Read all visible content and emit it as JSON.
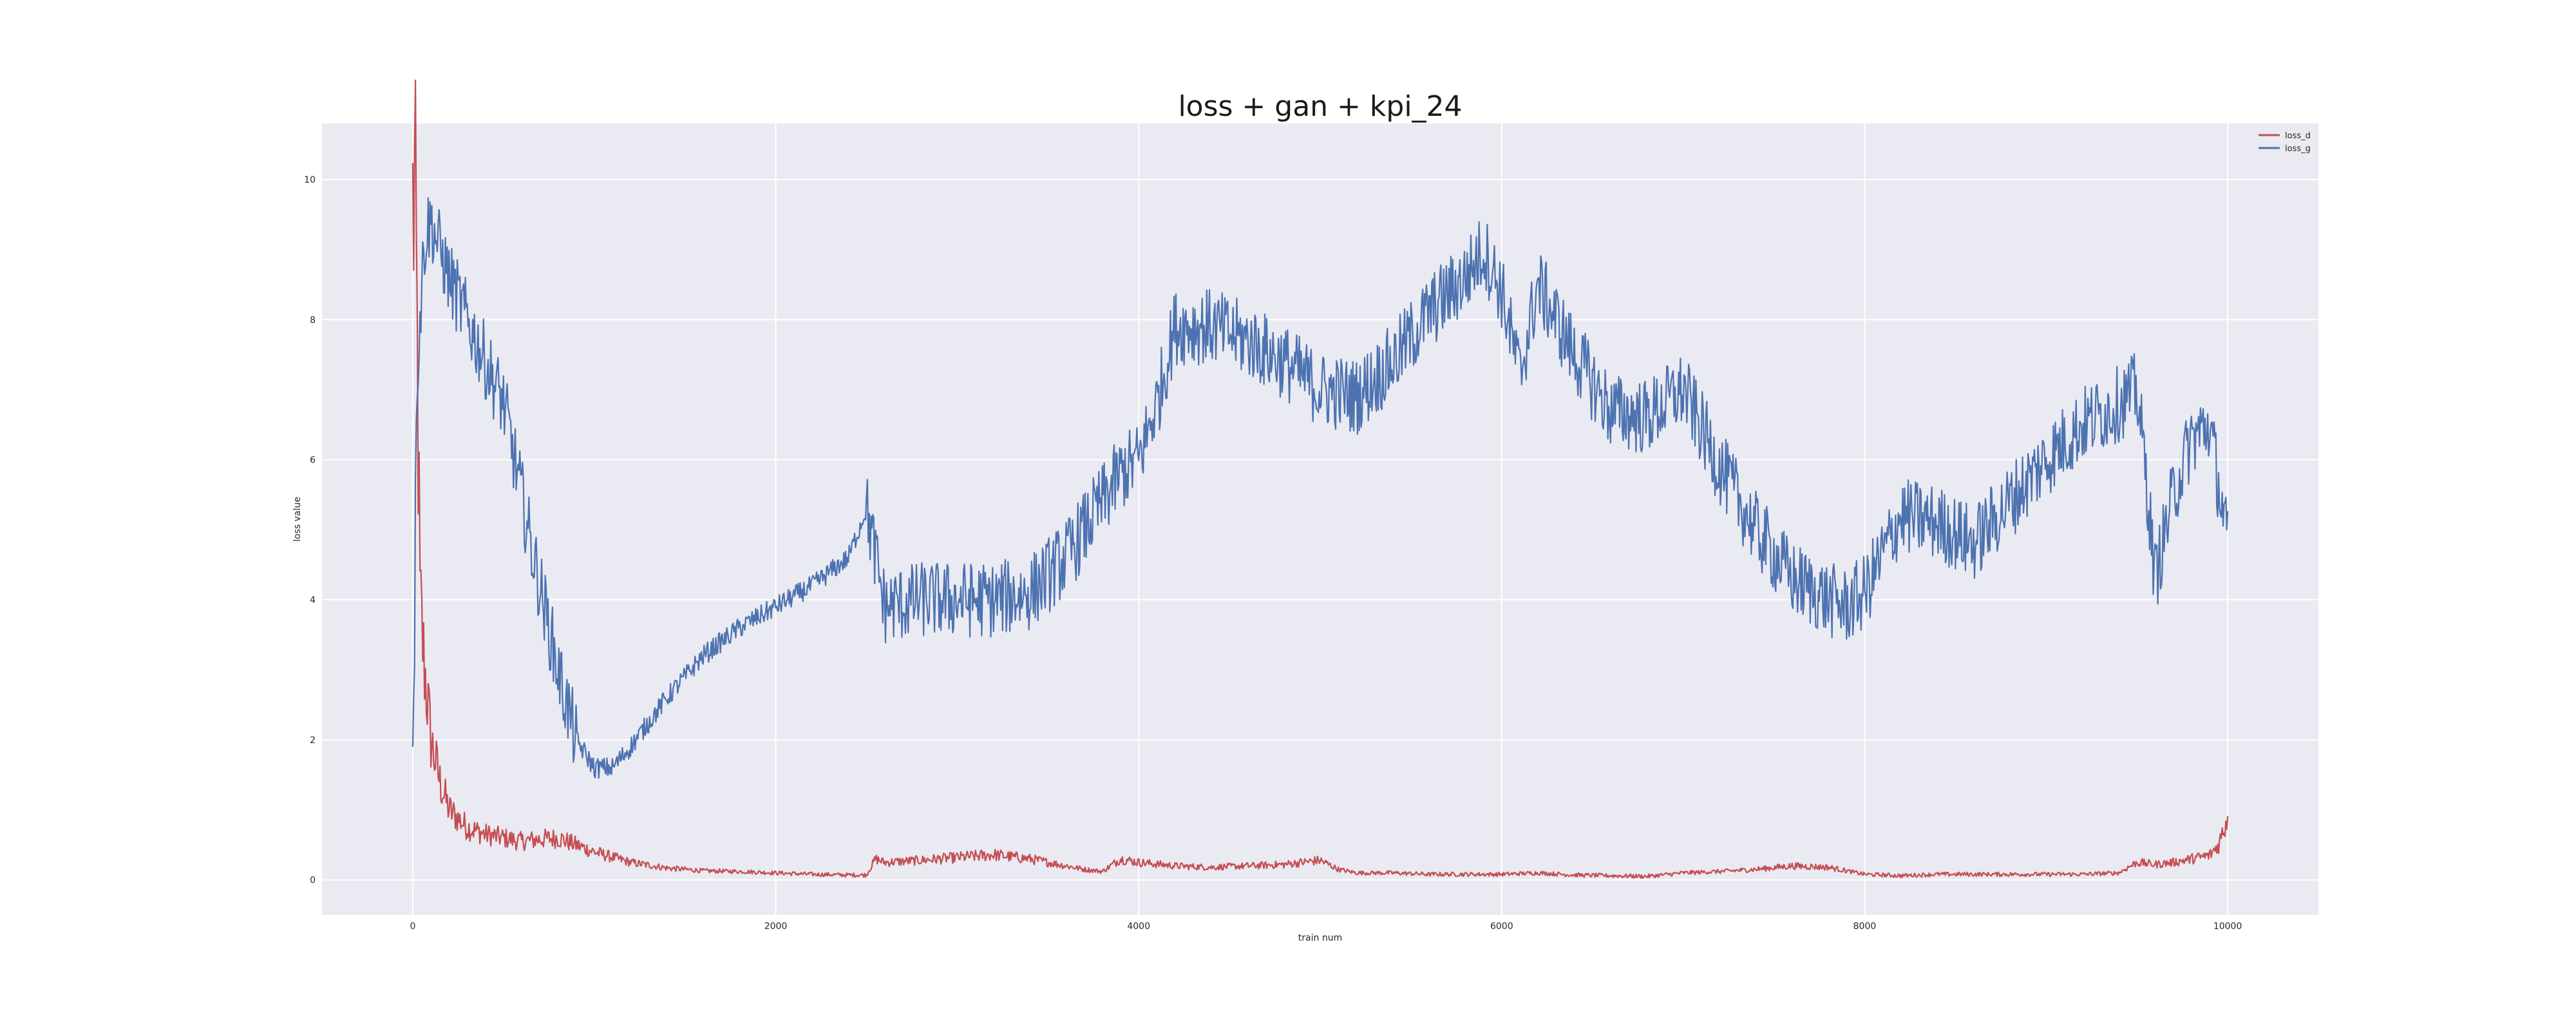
{
  "chart_data": {
    "type": "line",
    "title": "loss + gan + kpi_24",
    "xlabel": "train num",
    "ylabel": "loss value",
    "xlim": [
      -500,
      10500
    ],
    "ylim": [
      -0.5,
      10.8
    ],
    "xticks": [
      0,
      2000,
      4000,
      6000,
      8000,
      10000
    ],
    "yticks": [
      0,
      2,
      4,
      6,
      8,
      10
    ],
    "grid": true,
    "legend_position": "top-right",
    "series": [
      {
        "name": "loss_d",
        "color": "#c44e52",
        "x": [
          0,
          10,
          20,
          40,
          60,
          80,
          100,
          150,
          200,
          300,
          400,
          500,
          600,
          700,
          800,
          900,
          1000,
          1200,
          1400,
          1600,
          1800,
          2000,
          2200,
          2400,
          2500,
          2550,
          2600,
          2800,
          3000,
          3200,
          3400,
          3600,
          3700,
          3800,
          3900,
          4000,
          4200,
          4400,
          4600,
          4800,
          5000,
          5100,
          5200,
          5400,
          5600,
          5800,
          6000,
          6200,
          6400,
          6600,
          6800,
          7000,
          7200,
          7400,
          7600,
          7800,
          8000,
          8200,
          8400,
          8600,
          8800,
          9000,
          9200,
          9400,
          9500,
          9600,
          9700,
          9800,
          9900,
          9950,
          10000
        ],
        "values": [
          9.5,
          9.8,
          8.5,
          4.0,
          3.2,
          2.6,
          2.0,
          1.4,
          1.0,
          0.75,
          0.65,
          0.6,
          0.55,
          0.58,
          0.6,
          0.5,
          0.4,
          0.25,
          0.17,
          0.13,
          0.12,
          0.1,
          0.08,
          0.07,
          0.07,
          0.3,
          0.25,
          0.28,
          0.32,
          0.36,
          0.3,
          0.2,
          0.15,
          0.12,
          0.3,
          0.25,
          0.2,
          0.18,
          0.2,
          0.22,
          0.28,
          0.15,
          0.1,
          0.1,
          0.08,
          0.08,
          0.08,
          0.1,
          0.07,
          0.06,
          0.05,
          0.1,
          0.12,
          0.15,
          0.2,
          0.18,
          0.08,
          0.06,
          0.08,
          0.08,
          0.08,
          0.08,
          0.08,
          0.1,
          0.25,
          0.22,
          0.25,
          0.3,
          0.35,
          0.5,
          0.9
        ]
      },
      {
        "name": "loss_g",
        "color": "#4c72b0",
        "x": [
          0,
          10,
          20,
          40,
          60,
          80,
          100,
          150,
          200,
          300,
          400,
          500,
          600,
          650,
          700,
          800,
          900,
          1000,
          1100,
          1200,
          1400,
          1600,
          1800,
          2000,
          2200,
          2400,
          2500,
          2600,
          2800,
          3000,
          3200,
          3400,
          3600,
          3800,
          3900,
          4000,
          4100,
          4200,
          4400,
          4600,
          4800,
          5000,
          5200,
          5400,
          5600,
          5800,
          5900,
          6000,
          6100,
          6200,
          6400,
          6600,
          6800,
          7000,
          7200,
          7400,
          7600,
          7800,
          7900,
          8000,
          8200,
          8400,
          8600,
          8800,
          9000,
          9200,
          9400,
          9500,
          9550,
          9600,
          9700,
          9800,
          9900,
          10000
        ],
        "values": [
          2.2,
          3.5,
          7.0,
          8.0,
          9.0,
          9.3,
          9.4,
          9.0,
          8.6,
          8.0,
          7.4,
          6.8,
          5.5,
          4.8,
          4.2,
          3.0,
          2.0,
          1.6,
          1.6,
          1.9,
          2.6,
          3.2,
          3.6,
          3.9,
          4.2,
          4.6,
          5.3,
          3.9,
          4.0,
          4.0,
          4.0,
          4.1,
          4.6,
          5.4,
          5.8,
          6.0,
          6.8,
          7.9,
          7.9,
          7.7,
          7.4,
          7.0,
          6.9,
          7.4,
          8.1,
          8.6,
          9.0,
          8.4,
          7.2,
          8.5,
          7.5,
          6.7,
          6.6,
          7.0,
          5.9,
          5.0,
          4.3,
          4.0,
          3.9,
          4.1,
          5.2,
          5.1,
          4.8,
          5.4,
          6.0,
          6.5,
          6.8,
          7.0,
          5.8,
          4.3,
          5.5,
          6.3,
          6.5,
          4.8
        ]
      }
    ]
  }
}
